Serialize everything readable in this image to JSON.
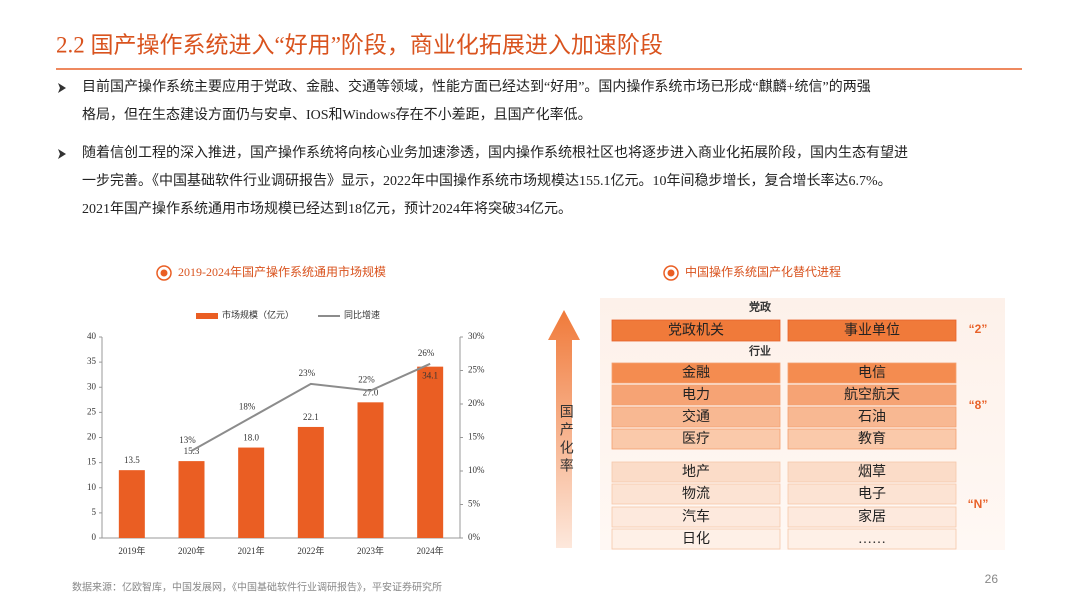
{
  "title": "2.2 国产操作系统进入“好用”阶段，商业化拓展进入加速阶段",
  "bullets": [
    [
      "目前国产操作系统主要应用于党政、金融、交通等领域，性能方面已经达到“好用”。国内操作系统市场已形成“麒麟+统信”的两强",
      "格局，但在生态建设方面仍与安卓、IOS和Windows存在不小差距，且国产化率低。"
    ],
    [
      "随着信创工程的深入推进，国产操作系统将向核心业务加速渗透，国内操作系统根社区也将逐步进入商业化拓展阶段，国内生态有望进",
      "一步完善。《中国基础软件行业调研报告》显示，2022年中国操作系统市场规模达155.1亿元。10年间稳步增长，复合增长率达6.7%。",
      "2021年国产操作系统通用市场规模已经达到18亿元，预计2024年将突破34亿元。"
    ]
  ],
  "chart_data": {
    "type": "bar_line",
    "title": "2019-2024年国产操作系统通用市场规模",
    "categories": [
      "2019年",
      "2020年",
      "2021年",
      "2022年",
      "2023年",
      "2024年"
    ],
    "series": [
      {
        "name": "市场规模（亿元）",
        "color": "#ea5e23",
        "values": [
          13.5,
          15.3,
          18.0,
          22.1,
          27.0,
          34.1
        ],
        "value_labels": [
          "13.5",
          "15.3",
          "18.0",
          "22.1",
          "27.0",
          "34.1"
        ]
      },
      {
        "name": "同比增速",
        "color": "#8c8c8c",
        "axis": "y2",
        "values": [
          null,
          13,
          18,
          23,
          22,
          26
        ],
        "value_labels": [
          null,
          "13%",
          "18%",
          "23%",
          "22%",
          "26%"
        ]
      }
    ],
    "ylim": [
      0,
      40
    ],
    "yticks": [
      0,
      5,
      10,
      15,
      20,
      25,
      30,
      35,
      40
    ],
    "y2lim": [
      0,
      30
    ],
    "y2ticks": [
      {
        "value": 0,
        "label": "0%"
      },
      {
        "value": 5,
        "label": "5%"
      },
      {
        "value": 10,
        "label": "10%"
      },
      {
        "value": 15,
        "label": "15%"
      },
      {
        "value": 20,
        "label": "20%"
      },
      {
        "value": 25,
        "label": "25%"
      },
      {
        "value": 30,
        "label": "30%"
      }
    ],
    "legend": "top"
  },
  "diagram": {
    "title": "中国操作系统国产化替代进程",
    "arrow_label": "国产化率",
    "groups": [
      {
        "header": "党政",
        "tag": "“2”",
        "rows": [
          [
            "党政机关",
            "事业单位"
          ]
        ]
      },
      {
        "header": "行业",
        "tag": "“8”",
        "rows": [
          [
            "金融",
            "电信"
          ],
          [
            "电力",
            "航空航天"
          ],
          [
            "交通",
            "石油"
          ],
          [
            "医疗",
            "教育"
          ]
        ]
      },
      {
        "tag": "“N”",
        "rows": [
          [
            "地产",
            "烟草"
          ],
          [
            "物流",
            "电子"
          ],
          [
            "汽车",
            "家居"
          ],
          [
            "日化",
            "……"
          ]
        ]
      }
    ]
  },
  "source": "数据来源：亿欧智库，中国发展网，《中国基础软件行业调研报告》，平安证券研究所",
  "page_number": "26"
}
